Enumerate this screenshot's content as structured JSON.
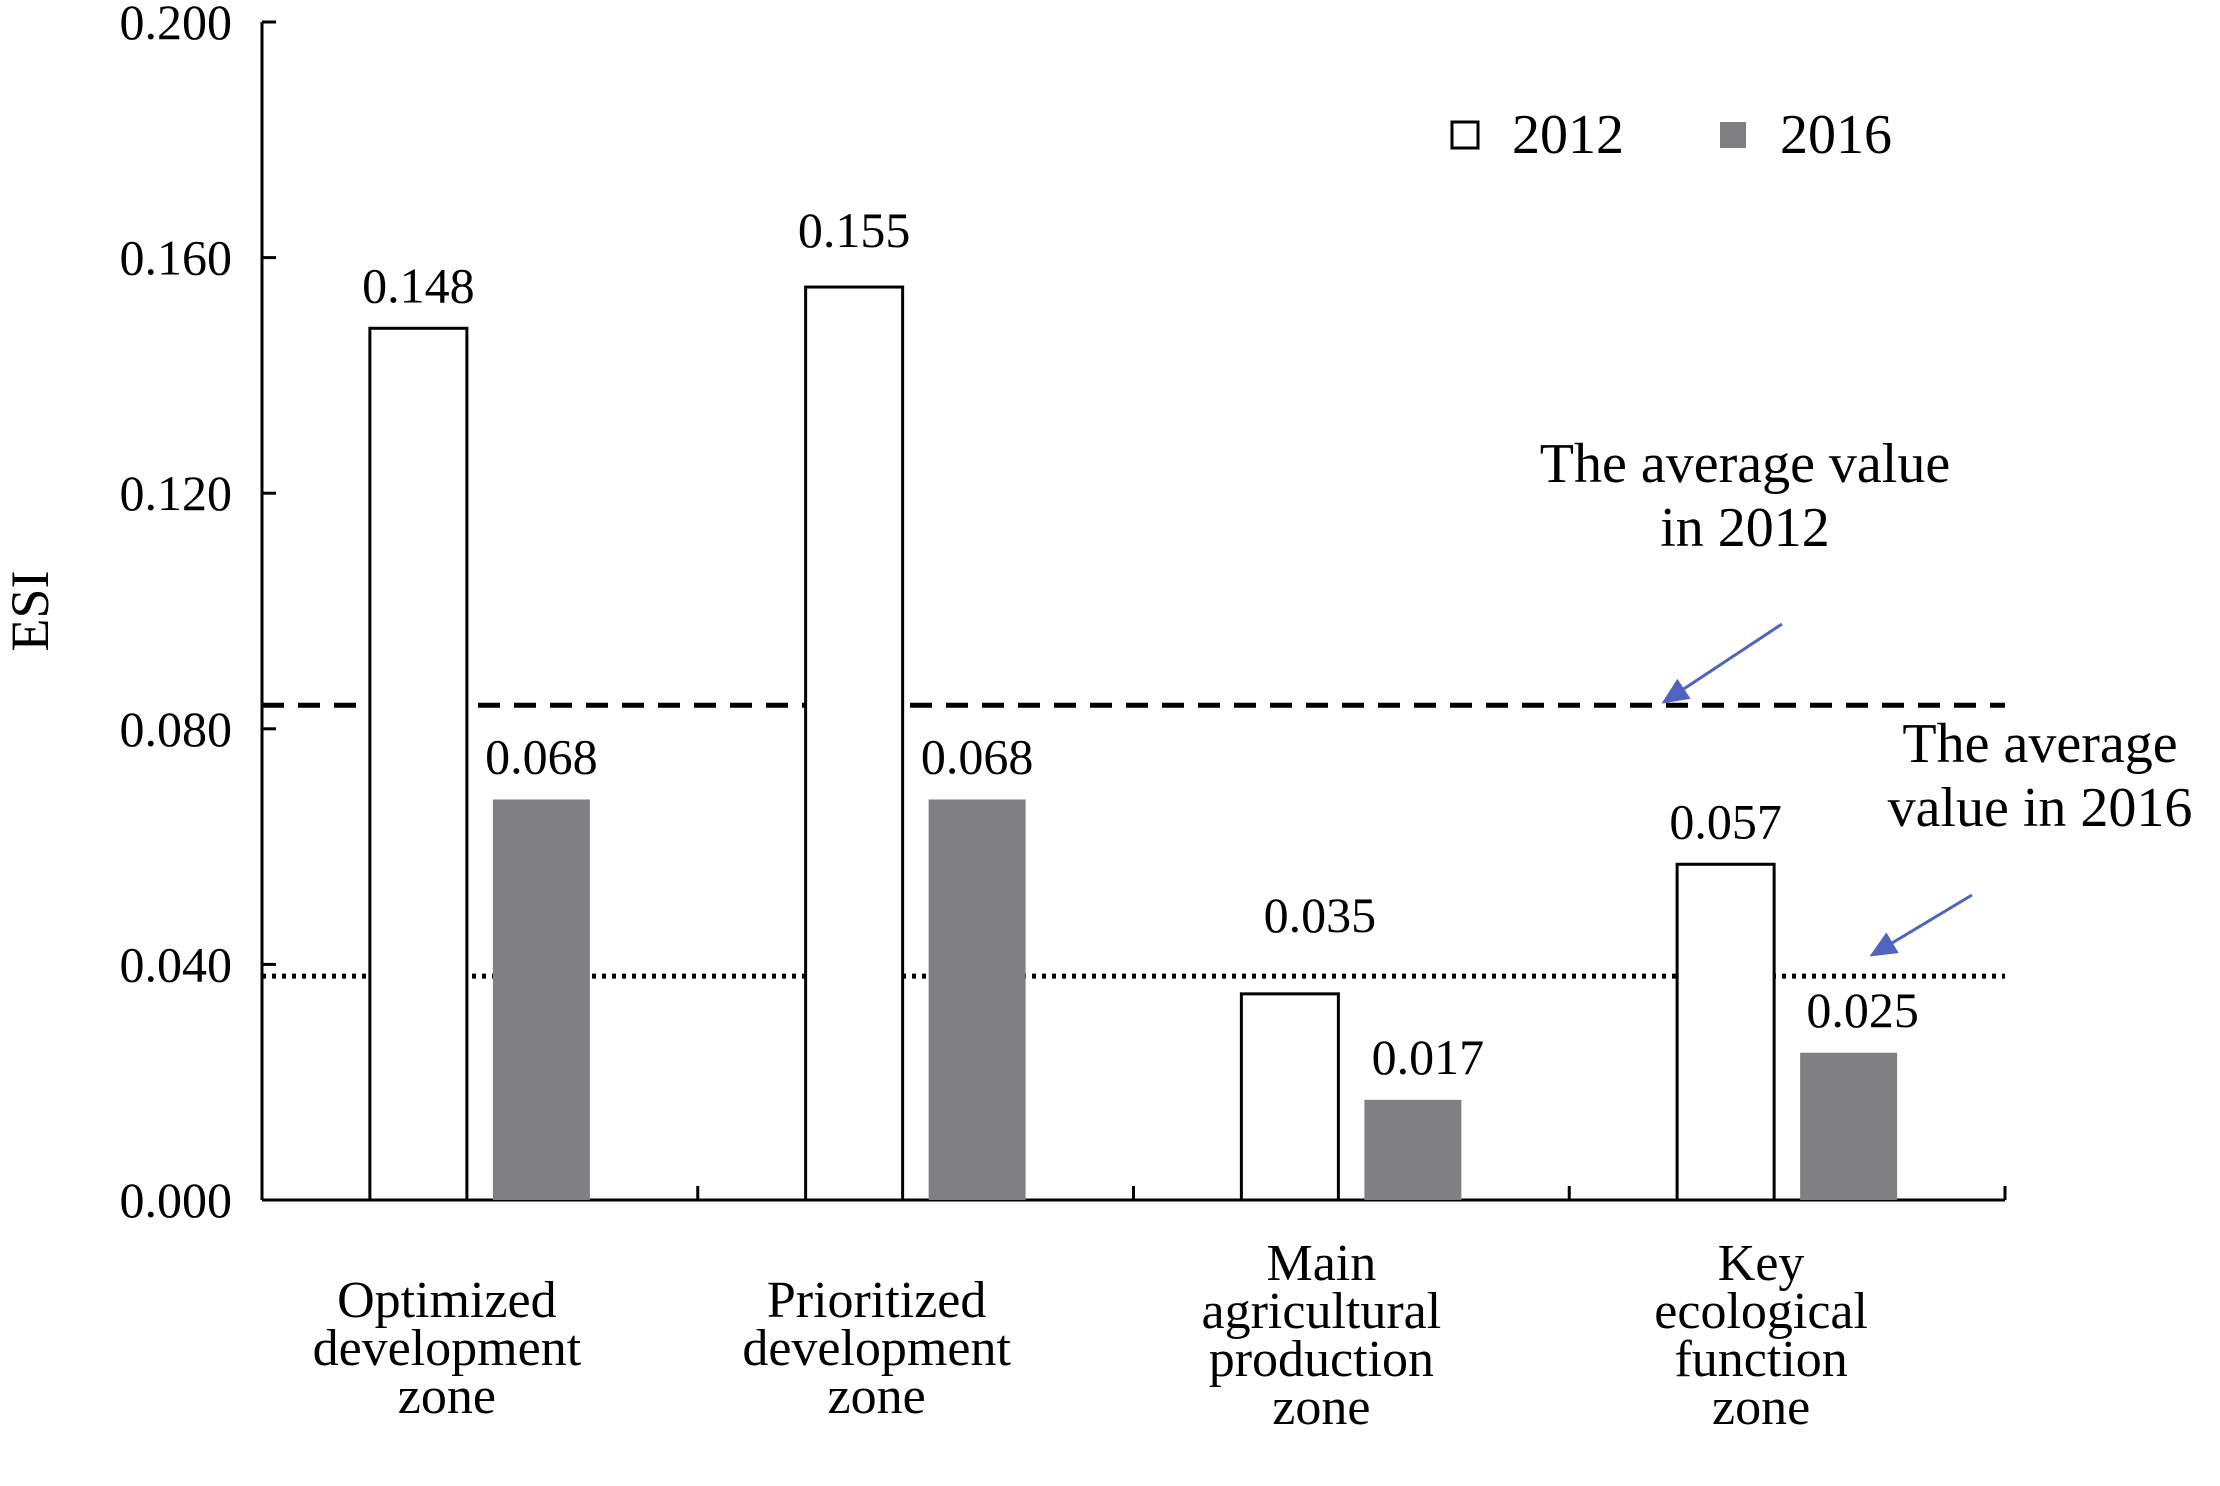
{
  "chart_data": {
    "type": "bar",
    "ylabel": "ESI",
    "ylim": [
      0,
      0.2
    ],
    "yticks": [
      "0.000",
      "0.040",
      "0.080",
      "0.120",
      "0.160",
      "0.200"
    ],
    "categories": [
      [
        "Optimized",
        "development",
        "zone"
      ],
      [
        "Prioritized",
        "development",
        "zone"
      ],
      [
        "Main",
        "agricultural",
        "production",
        "zone"
      ],
      [
        "Key",
        "ecological",
        "function",
        "zone"
      ]
    ],
    "series": [
      {
        "name": "2012",
        "values": [
          0.148,
          0.155,
          0.035,
          0.057
        ],
        "labels": [
          "0.148",
          "0.155",
          "0.035",
          "0.057"
        ],
        "fill": "#ffffff",
        "stroke": "#000000"
      },
      {
        "name": "2016",
        "values": [
          0.068,
          0.068,
          0.017,
          0.025
        ],
        "labels": [
          "0.068",
          "0.068",
          "0.017",
          "0.025"
        ],
        "fill": "#808083",
        "stroke": "#808083"
      }
    ],
    "legend_position": "top-right",
    "grid": false,
    "reference_lines": [
      {
        "value": 0.084,
        "style": "dashed",
        "label": [
          "The average value",
          "in 2012"
        ]
      },
      {
        "value": 0.038,
        "style": "dotted",
        "label": [
          "The average",
          "value in 2016"
        ]
      }
    ],
    "arrow_color": "#4f63bf"
  }
}
